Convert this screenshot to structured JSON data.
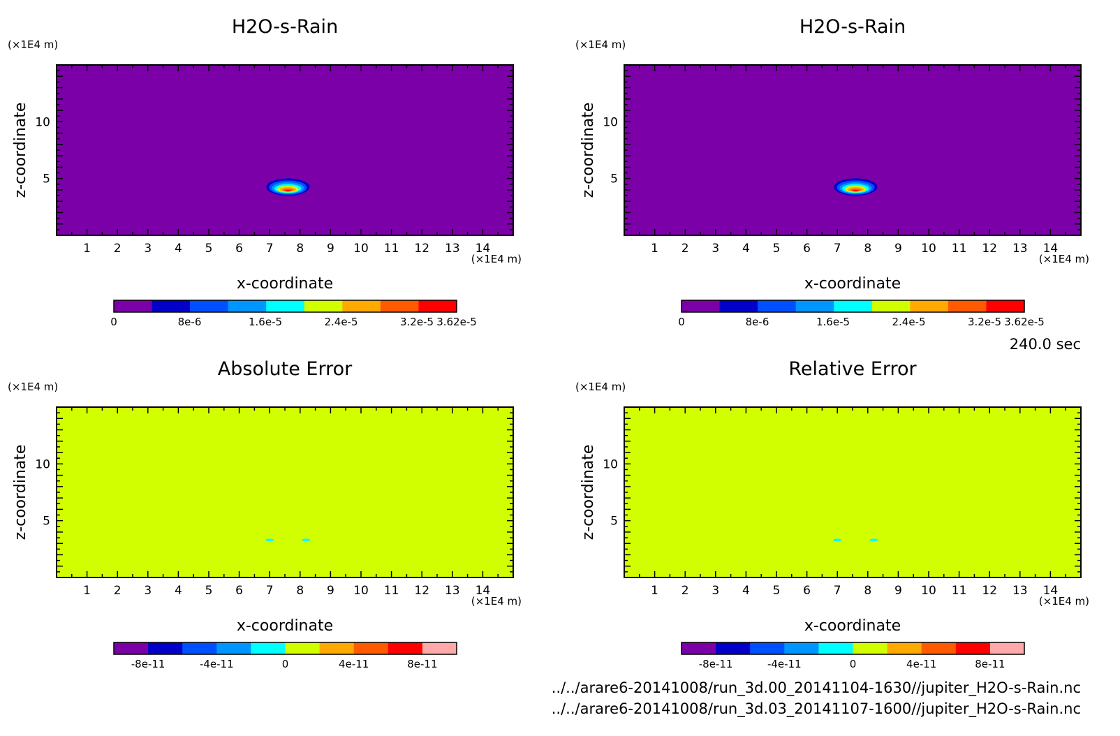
{
  "figure": {
    "time_label": "240.0 sec",
    "file_paths": [
      "../../arare6-20141008/run_3d.00_20141104-1630//jupiter_H2O-s-Rain.nc",
      "../../arare6-20141008/run_3d.03_20141107-1600//jupiter_H2O-s-Rain.nc"
    ]
  },
  "palettes": {
    "field": [
      "#7b00a8",
      "#0000c8",
      "#0050ff",
      "#0096ff",
      "#00ffff",
      "#d2ff00",
      "#ffaa00",
      "#ff5a00",
      "#ff0000"
    ],
    "error": [
      "#7b00a8",
      "#0000c8",
      "#0050ff",
      "#0096ff",
      "#00ffff",
      "#d2ff00",
      "#ffaa00",
      "#ff5a00",
      "#ff0000",
      "#ffaaaa"
    ]
  },
  "chart_data": [
    {
      "type": "heatmap",
      "id": "panel-h2o-1",
      "title": "H2O-s-Rain",
      "xlabel": "x-coordinate",
      "ylabel": "z-coordinate",
      "x_unit": "(×1E4 m)",
      "y_unit": "(×1E4 m)",
      "xlim": [
        0,
        15
      ],
      "ylim": [
        0,
        15
      ],
      "x_ticks": [
        1,
        2,
        3,
        4,
        5,
        6,
        7,
        8,
        9,
        10,
        11,
        12,
        13,
        14
      ],
      "y_ticks": [
        5,
        10
      ],
      "background_level": 0,
      "feature": {
        "shape": "blob",
        "x_center": 7.6,
        "z_center": 4.3,
        "x_half_width": 0.8,
        "z_half_height": 0.9,
        "max": 3.62e-05
      },
      "colorbar": {
        "palette": "field",
        "min": 0,
        "max": 3.62e-05,
        "tick_values": [
          0,
          8e-06,
          1.6e-05,
          2.4e-05,
          3.2e-05,
          3.62e-05
        ],
        "tick_labels": [
          "0",
          "8e-6",
          "1.6e-5",
          "2.4e-5",
          "3.2e-5",
          "3.62e-5"
        ]
      }
    },
    {
      "type": "heatmap",
      "id": "panel-h2o-2",
      "title": "H2O-s-Rain",
      "xlabel": "x-coordinate",
      "ylabel": "z-coordinate",
      "x_unit": "(×1E4 m)",
      "y_unit": "(×1E4 m)",
      "xlim": [
        0,
        15
      ],
      "ylim": [
        0,
        15
      ],
      "x_ticks": [
        1,
        2,
        3,
        4,
        5,
        6,
        7,
        8,
        9,
        10,
        11,
        12,
        13,
        14
      ],
      "y_ticks": [
        5,
        10
      ],
      "background_level": 0,
      "feature": {
        "shape": "blob",
        "x_center": 7.6,
        "z_center": 4.3,
        "x_half_width": 0.8,
        "z_half_height": 0.9,
        "max": 3.62e-05
      },
      "colorbar": {
        "palette": "field",
        "min": 0,
        "max": 3.62e-05,
        "tick_values": [
          0,
          8e-06,
          1.6e-05,
          2.4e-05,
          3.2e-05,
          3.62e-05
        ],
        "tick_labels": [
          "0",
          "8e-6",
          "1.6e-5",
          "2.4e-5",
          "3.2e-5",
          "3.62e-5"
        ]
      }
    },
    {
      "type": "heatmap",
      "id": "panel-abs-error",
      "title": "Absolute Error",
      "xlabel": "x-coordinate",
      "ylabel": "z-coordinate",
      "x_unit": "(×1E4 m)",
      "y_unit": "(×1E4 m)",
      "xlim": [
        0,
        15
      ],
      "ylim": [
        0,
        15
      ],
      "x_ticks": [
        1,
        2,
        3,
        4,
        5,
        6,
        7,
        8,
        9,
        10,
        11,
        12,
        13,
        14
      ],
      "y_ticks": [
        5,
        10
      ],
      "background_level": 0,
      "feature": {
        "shape": "specks",
        "points": [
          [
            7.0,
            3.3
          ],
          [
            8.2,
            3.3
          ]
        ],
        "value": -2e-11
      },
      "colorbar": {
        "palette": "error",
        "min": -1e-10,
        "max": 1e-10,
        "tick_values": [
          -8e-11,
          -4e-11,
          0,
          4e-11,
          8e-11
        ],
        "tick_labels": [
          "-8e-11",
          "-4e-11",
          "0",
          "4e-11",
          "8e-11"
        ]
      }
    },
    {
      "type": "heatmap",
      "id": "panel-rel-error",
      "title": "Relative Error",
      "xlabel": "x-coordinate",
      "ylabel": "z-coordinate",
      "x_unit": "(×1E4 m)",
      "y_unit": "(×1E4 m)",
      "xlim": [
        0,
        15
      ],
      "ylim": [
        0,
        15
      ],
      "x_ticks": [
        1,
        2,
        3,
        4,
        5,
        6,
        7,
        8,
        9,
        10,
        11,
        12,
        13,
        14
      ],
      "y_ticks": [
        5,
        10
      ],
      "background_level": 0,
      "feature": {
        "shape": "specks",
        "points": [
          [
            7.0,
            3.3
          ],
          [
            8.2,
            3.3
          ]
        ],
        "value": -2e-11
      },
      "colorbar": {
        "palette": "error",
        "min": -1e-10,
        "max": 1e-10,
        "tick_values": [
          -8e-11,
          -4e-11,
          0,
          4e-11,
          8e-11
        ],
        "tick_labels": [
          "-8e-11",
          "-4e-11",
          "0",
          "4e-11",
          "8e-11"
        ]
      }
    }
  ]
}
